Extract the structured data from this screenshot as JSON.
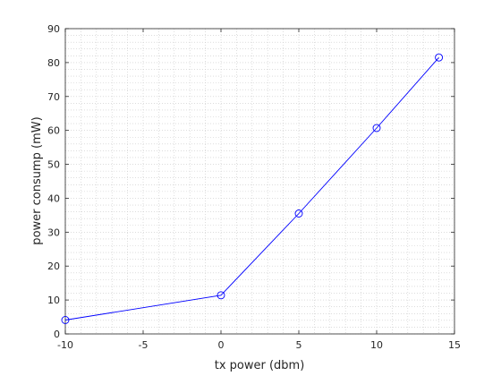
{
  "chart_data": {
    "type": "line",
    "title": "",
    "xlabel": "tx power (dbm)",
    "ylabel": "power consump (mW)",
    "xlim": [
      -10,
      15
    ],
    "ylim": [
      0,
      90
    ],
    "xticks": [
      -10,
      -5,
      0,
      5,
      10,
      15
    ],
    "yticks": [
      0,
      10,
      20,
      30,
      40,
      50,
      60,
      70,
      80,
      90
    ],
    "xtick_labels": [
      "-10",
      "-5",
      "0",
      "5",
      "10",
      "15"
    ],
    "ytick_labels": [
      "0",
      "10",
      "20",
      "30",
      "40",
      "50",
      "60",
      "70",
      "80",
      "90"
    ],
    "grid": "minor dotted",
    "series": [
      {
        "x": [
          -10,
          0,
          5,
          10,
          14
        ],
        "y": [
          4.1,
          11.4,
          35.5,
          60.7,
          81.5
        ],
        "color": "#0000ff",
        "marker": "circle"
      }
    ]
  }
}
